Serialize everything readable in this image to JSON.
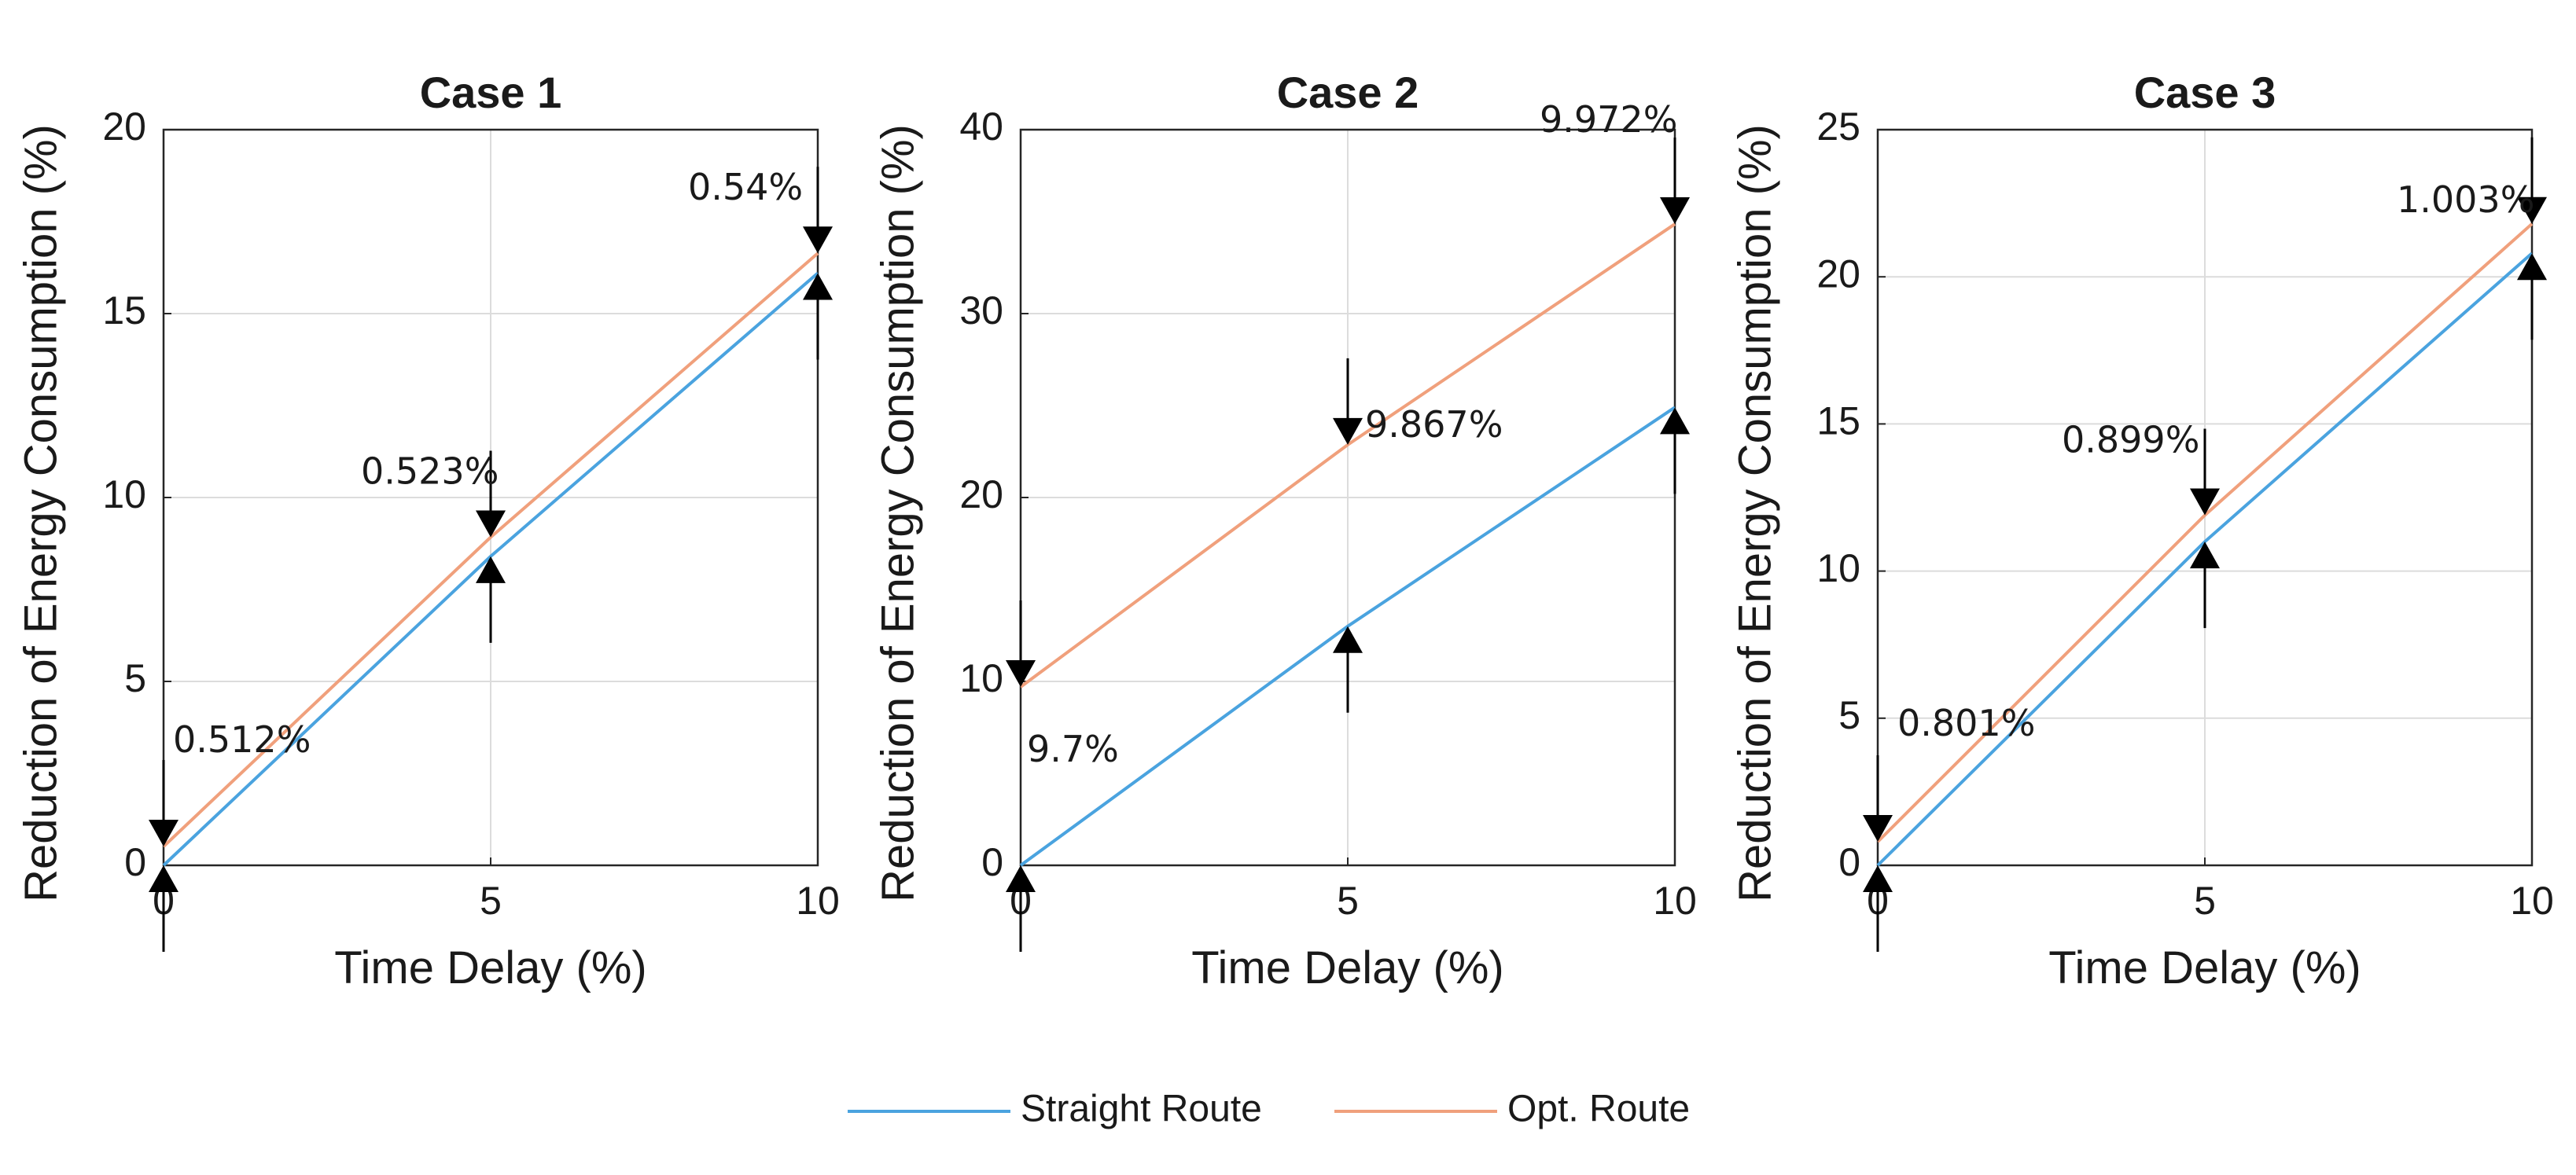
{
  "legend": {
    "items": [
      {
        "label": "Straight Route",
        "color": "#4aa3df"
      },
      {
        "label": "Opt. Route",
        "color": "#f0a07c"
      }
    ],
    "placement": "bottom-center"
  },
  "chart_data": [
    {
      "type": "line",
      "title": "Case 1",
      "xlabel": "Time Delay (%)",
      "ylabel": "Reduction of Energy Consumption (%)",
      "xlim": [
        0,
        10
      ],
      "ylim": [
        0,
        20
      ],
      "xticks": [
        0,
        5,
        10
      ],
      "yticks": [
        0,
        5,
        10,
        15,
        20
      ],
      "grid": true,
      "x": [
        0,
        5,
        10
      ],
      "series": [
        {
          "name": "Straight Route",
          "color": "#4aa3df",
          "values": [
            0,
            8.4,
            16.1
          ]
        },
        {
          "name": "Opt. Route",
          "color": "#f0a07c",
          "values": [
            0.512,
            8.92,
            16.64
          ]
        }
      ],
      "annotations": [
        {
          "x": 0,
          "text": "0.512%",
          "lo": 0,
          "hi": 0.512
        },
        {
          "x": 5,
          "text": "0.523%",
          "lo": 8.4,
          "hi": 8.92
        },
        {
          "x": 10,
          "text": "0.54%",
          "lo": 16.1,
          "hi": 16.64
        }
      ]
    },
    {
      "type": "line",
      "title": "Case 2",
      "xlabel": "Time Delay (%)",
      "ylabel": "Reduction of Energy Consumption (%)",
      "xlim": [
        0,
        10
      ],
      "ylim": [
        0,
        40
      ],
      "xticks": [
        0,
        5,
        10
      ],
      "yticks": [
        0,
        10,
        20,
        30,
        40
      ],
      "grid": true,
      "x": [
        0,
        5,
        10
      ],
      "series": [
        {
          "name": "Straight Route",
          "color": "#4aa3df",
          "values": [
            0,
            13.0,
            24.9
          ]
        },
        {
          "name": "Opt. Route",
          "color": "#f0a07c",
          "values": [
            9.7,
            22.87,
            34.87
          ]
        }
      ],
      "annotations": [
        {
          "x": 0,
          "text": "9.7%",
          "lo": 0,
          "hi": 9.7
        },
        {
          "x": 5,
          "text": "9.867%",
          "lo": 13.0,
          "hi": 22.87
        },
        {
          "x": 10,
          "text": "9.972%",
          "lo": 24.9,
          "hi": 34.87
        }
      ]
    },
    {
      "type": "line",
      "title": "Case 3",
      "xlabel": "Time Delay (%)",
      "ylabel": "Reduction of Energy Consumption (%)",
      "xlim": [
        0,
        10
      ],
      "ylim": [
        0,
        25
      ],
      "xticks": [
        0,
        5,
        10
      ],
      "yticks": [
        0,
        5,
        10,
        15,
        20,
        25
      ],
      "grid": true,
      "x": [
        0,
        5,
        10
      ],
      "series": [
        {
          "name": "Straight Route",
          "color": "#4aa3df",
          "values": [
            0,
            11.0,
            20.8
          ]
        },
        {
          "name": "Opt. Route",
          "color": "#f0a07c",
          "values": [
            0.801,
            11.9,
            21.8
          ]
        }
      ],
      "annotations": [
        {
          "x": 0,
          "text": "0.801%",
          "lo": 0,
          "hi": 0.801
        },
        {
          "x": 5,
          "text": "0.899%",
          "lo": 11.0,
          "hi": 11.9
        },
        {
          "x": 10,
          "text": "1.003%",
          "lo": 20.8,
          "hi": 21.8
        }
      ]
    }
  ]
}
